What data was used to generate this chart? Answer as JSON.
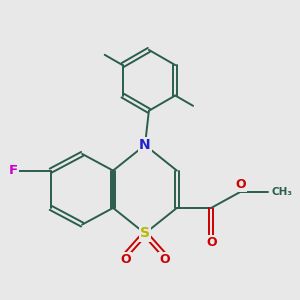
{
  "bg_color": "#e8e8e8",
  "bond_color": "#2a5e4a",
  "bond_width": 1.4,
  "dbo": 0.045,
  "atom_colors": {
    "S": "#b8b800",
    "N": "#2222cc",
    "F": "#cc00cc",
    "O": "#cc0000",
    "C": "#2a5e4a"
  },
  "fontsize": 9.5
}
